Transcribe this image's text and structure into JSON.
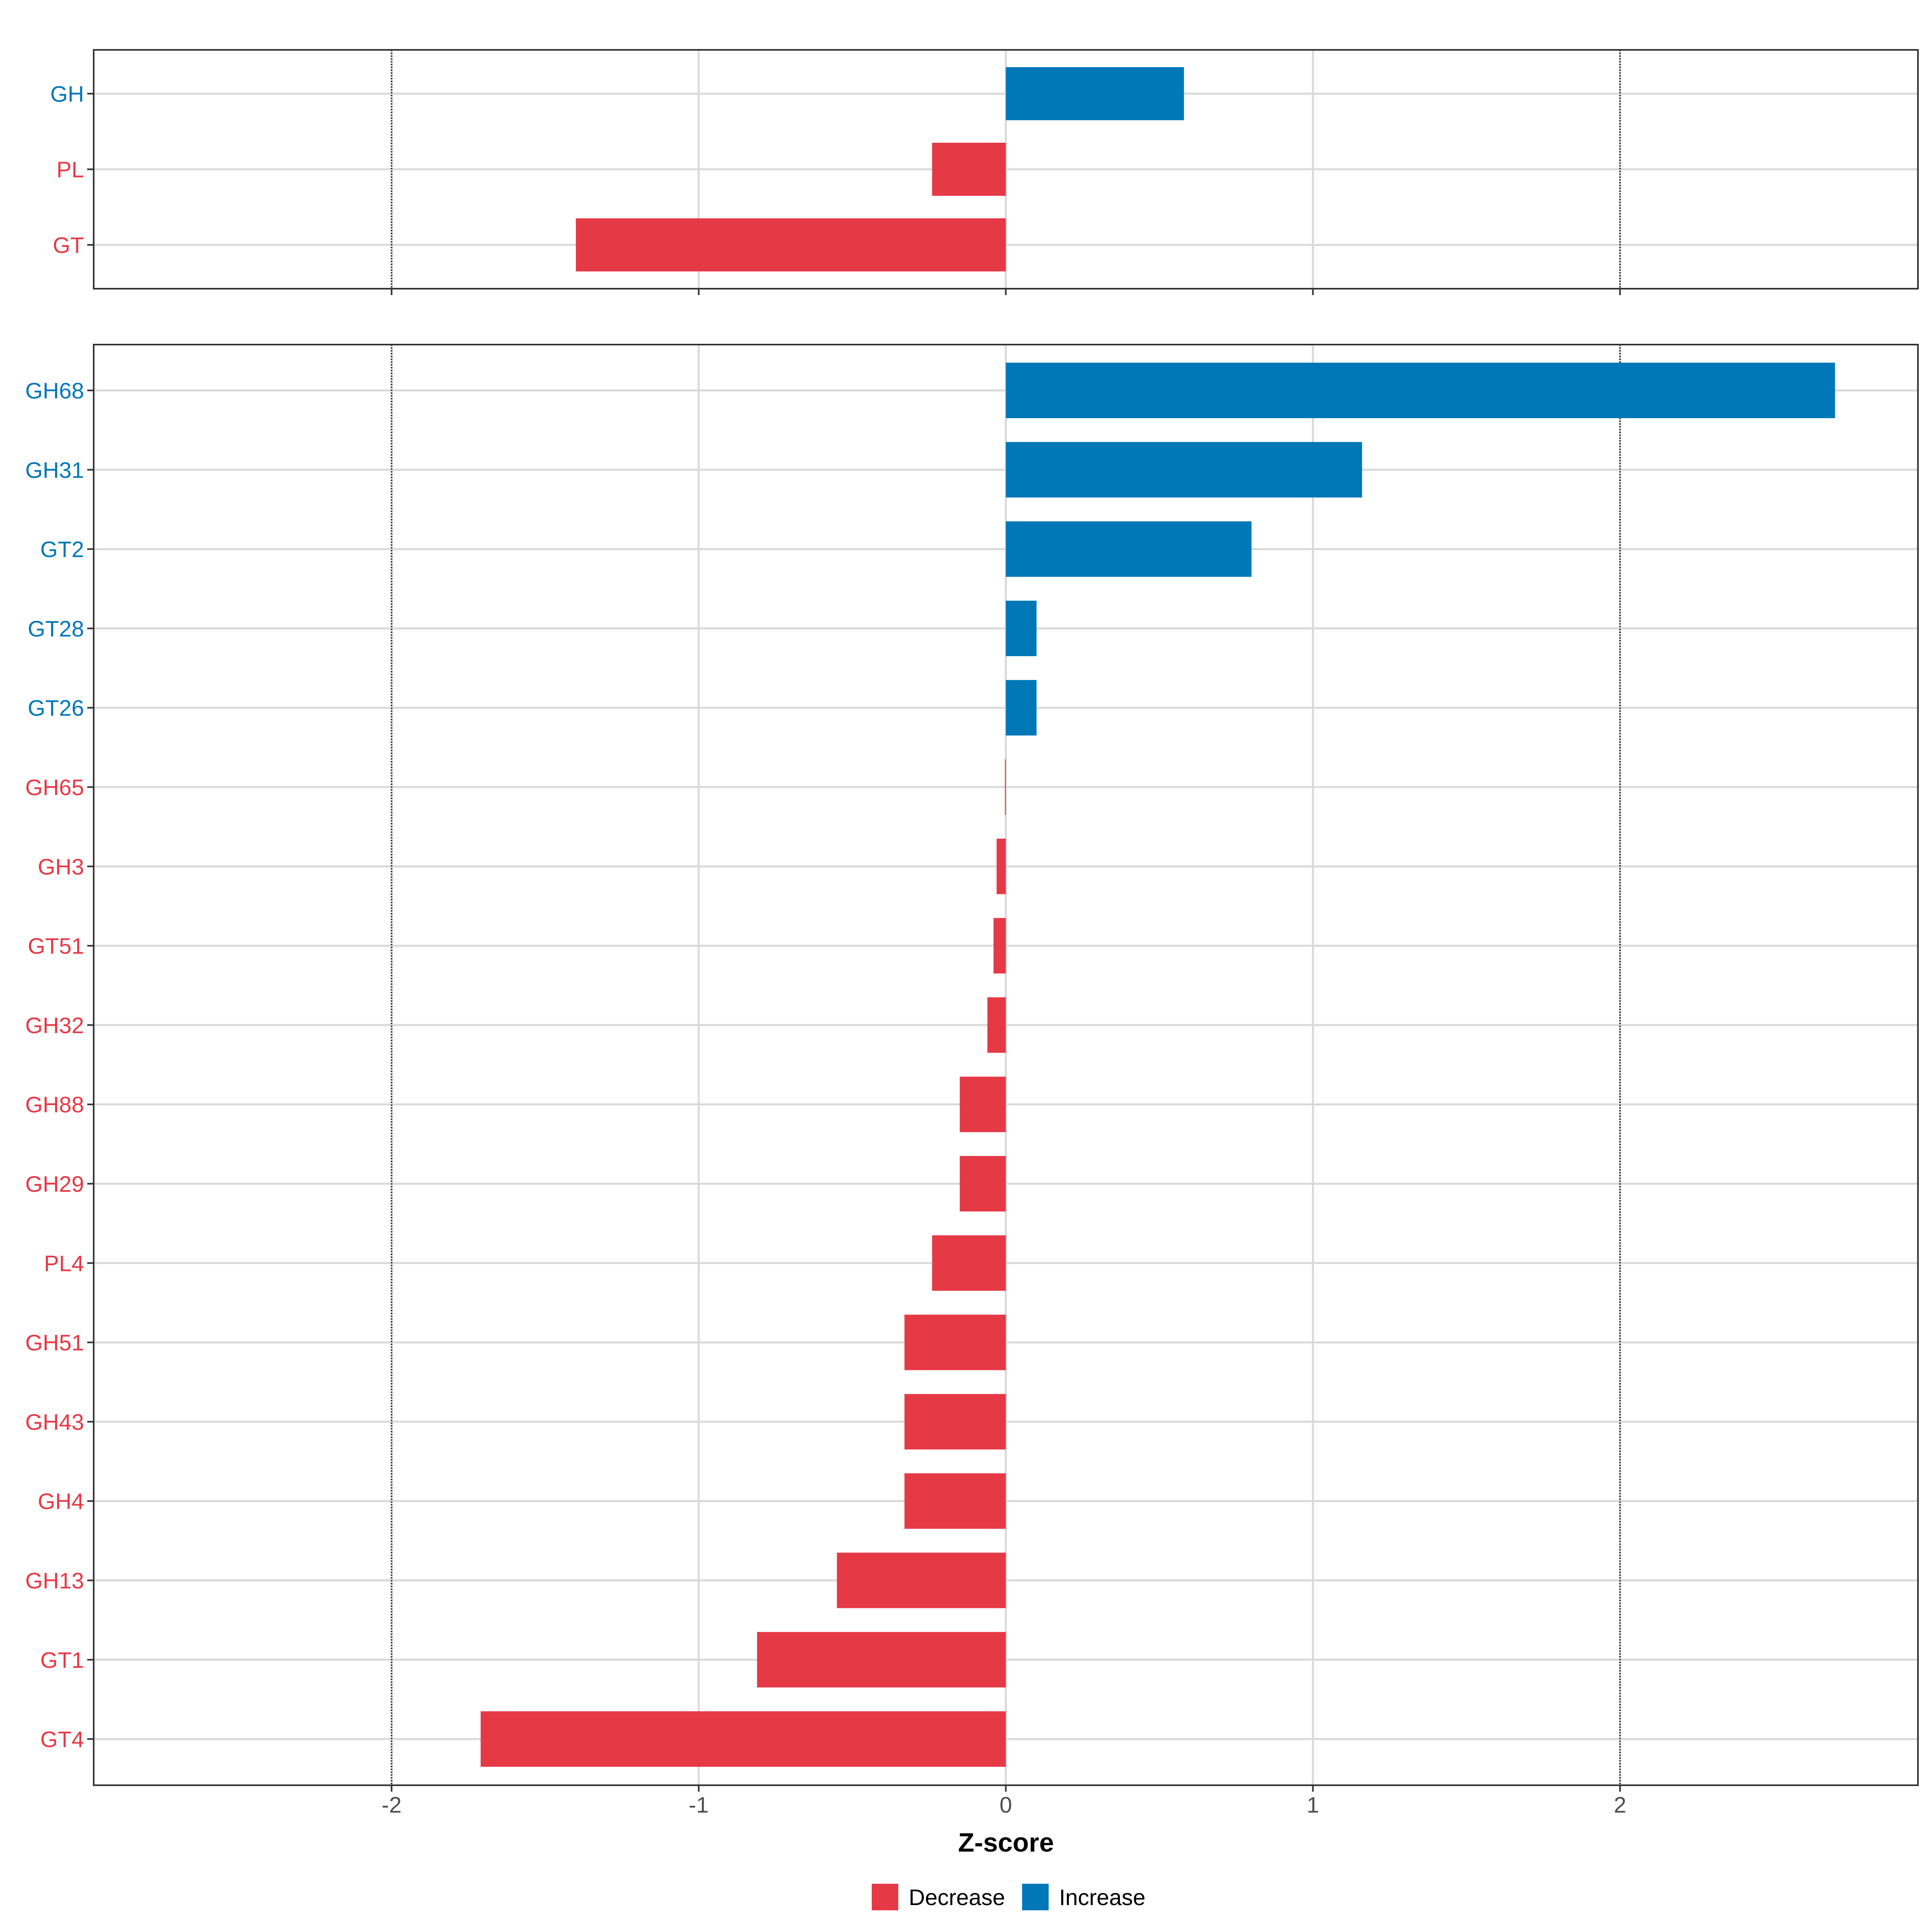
{
  "chart_data": [
    {
      "type": "bar",
      "orientation": "horizontal",
      "panel": "top",
      "categories": [
        "GH",
        "PL",
        "GT"
      ],
      "values": [
        0.58,
        -0.24,
        -1.4
      ],
      "xlim": [
        -2.97,
        2.97
      ],
      "grid": true,
      "reference_lines": [
        -2,
        2
      ]
    },
    {
      "type": "bar",
      "orientation": "horizontal",
      "panel": "bottom",
      "categories": [
        "GH68",
        "GH31",
        "GT2",
        "GT28",
        "GT26",
        "GH65",
        "GH3",
        "GT51",
        "GH32",
        "GH88",
        "GH29",
        "PL4",
        "GH51",
        "GH43",
        "GH4",
        "GH13",
        "GT1",
        "GT4"
      ],
      "values": [
        2.7,
        1.16,
        0.8,
        0.1,
        0.1,
        -0.003,
        -0.03,
        -0.04,
        -0.06,
        -0.15,
        -0.15,
        -0.24,
        -0.33,
        -0.33,
        -0.33,
        -0.55,
        -0.81,
        -1.71
      ],
      "xlim": [
        -2.97,
        2.97
      ],
      "xticks": [
        -2,
        -1,
        0,
        1,
        2
      ],
      "xlabel": "Z-score",
      "grid": true,
      "reference_lines": [
        -2,
        2
      ]
    }
  ],
  "legend": {
    "placement": "bottom",
    "items": [
      {
        "label": "Decrease",
        "color": "#e63946"
      },
      {
        "label": "Increase",
        "color": "#0077b6"
      }
    ]
  },
  "colors": {
    "decrease": "#e63946",
    "increase": "#0077b6",
    "grid": "#d9d9d9",
    "frame": "#333333"
  }
}
